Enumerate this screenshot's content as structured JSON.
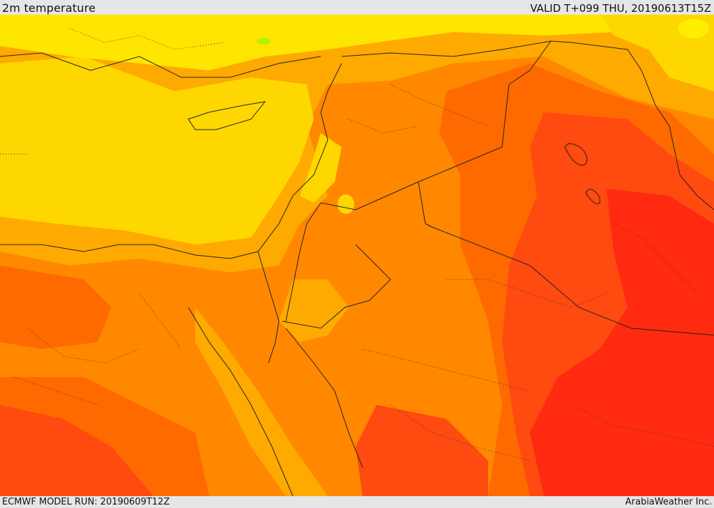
{
  "header": {
    "title": "2m temperature",
    "valid": "VALID T+099 THU, 20190613T15Z"
  },
  "footer": {
    "model_run": "ECMWF MODEL RUN: 20190609T12Z",
    "credit": "ArabiaWeather Inc."
  },
  "palette": {
    "pale_yellow": "#ffee00",
    "yellow": "#ffd700",
    "yellow_orange": "#ffaa00",
    "orange": "#ff8800",
    "dark_orange": "#ff6a00",
    "red_orange": "#ff4a10",
    "red": "#ff2a10",
    "green_trace": "#b8f000",
    "boundary": "#222222"
  }
}
